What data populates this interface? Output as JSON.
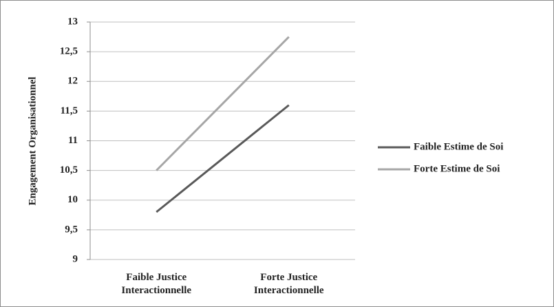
{
  "chart_data": {
    "type": "line",
    "y_label": "Engagement Organisationnel",
    "categories": [
      "Faible Justice Interactionnelle",
      "Forte Justice Interactionnelle"
    ],
    "series": [
      {
        "name": "Faible Estime de Soi",
        "color": "#595959",
        "values": [
          9.8,
          11.6
        ]
      },
      {
        "name": "Forte Estime de Soi",
        "color": "#a6a6a6",
        "values": [
          10.5,
          12.75
        ]
      }
    ],
    "ylim": [
      9,
      13
    ],
    "yticks": [
      9,
      {
        "value": 9.5,
        "label": "9,5"
      },
      10,
      {
        "value": 10.5,
        "label": "10,5"
      },
      11,
      {
        "value": 11.5,
        "label": "11,5"
      },
      12,
      {
        "value": 12.5,
        "label": "12,5"
      },
      13
    ],
    "grid": true,
    "legend": "right"
  }
}
